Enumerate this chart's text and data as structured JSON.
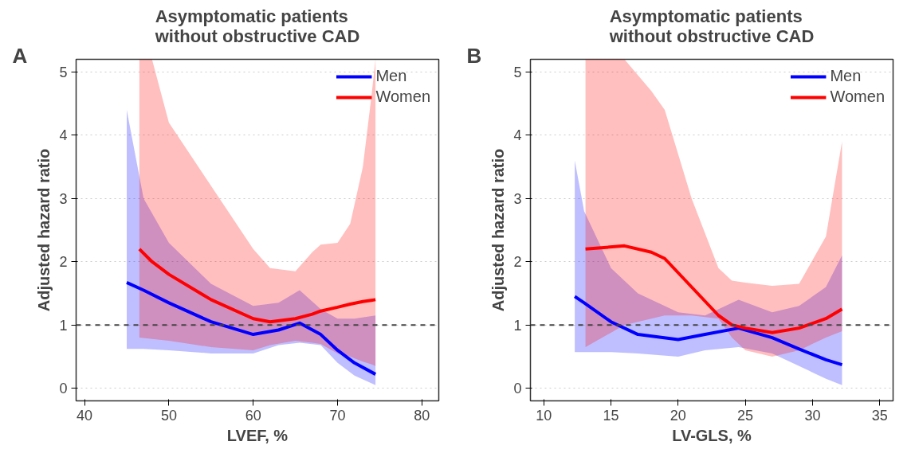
{
  "chart_data": [
    {
      "type": "line",
      "title": "Asymptomatic patients\nwithout obstructive CAD",
      "annotations": [
        "A"
      ],
      "xlabel": "LVEF, %",
      "ylabel": "Adjusted hazard ratio",
      "xlim": [
        39,
        82
      ],
      "ylim": [
        -0.2,
        5.2
      ],
      "xticks": [
        40,
        50,
        60,
        70,
        80
      ],
      "yticks": [
        0,
        1,
        2,
        3,
        4,
        5
      ],
      "grid": "y",
      "legend": "top right",
      "line_style": "solid",
      "ref_lines": [
        {
          "axis": "y",
          "value": 1,
          "line_style": "dashed",
          "color": "#444444"
        }
      ],
      "series": [
        {
          "name": "Men",
          "color": "#0000ff",
          "x": [
            45,
            47,
            50,
            55,
            60,
            63,
            65.5,
            68,
            70,
            72,
            74.5
          ],
          "values": [
            1.67,
            1.55,
            1.35,
            1.05,
            0.85,
            0.92,
            1.03,
            0.85,
            0.6,
            0.4,
            0.22
          ],
          "lower": [
            0.62,
            0.62,
            0.6,
            0.55,
            0.55,
            0.68,
            0.72,
            0.68,
            0.4,
            0.2,
            0.05
          ],
          "upper": [
            4.4,
            3.0,
            2.3,
            1.65,
            1.3,
            1.35,
            1.55,
            1.25,
            1.1,
            1.1,
            1.15
          ]
        },
        {
          "name": "Women",
          "color": "#ff0000",
          "x": [
            46.5,
            48,
            50,
            55,
            60,
            62,
            65,
            67,
            68,
            70,
            71.5,
            73,
            74,
            74.5
          ],
          "values": [
            2.2,
            2.0,
            1.8,
            1.4,
            1.1,
            1.05,
            1.1,
            1.17,
            1.22,
            1.28,
            1.33,
            1.37,
            1.39,
            1.4
          ],
          "lower": [
            0.8,
            0.78,
            0.75,
            0.65,
            0.6,
            0.68,
            0.75,
            0.72,
            0.7,
            0.55,
            0.5,
            0.42,
            0.38,
            0.35
          ],
          "upper": [
            5.2,
            5.2,
            4.2,
            3.2,
            2.2,
            1.9,
            1.85,
            2.15,
            2.27,
            2.3,
            2.6,
            3.5,
            4.6,
            5.2
          ]
        }
      ]
    },
    {
      "type": "line",
      "title": "Asymptomatic patients\nwithout obstructive CAD",
      "annotations": [
        "B"
      ],
      "xlabel": "LV-GLS, %",
      "ylabel": "Adjusted hazard ratio",
      "xlim": [
        9,
        36
      ],
      "ylim": [
        -0.2,
        5.2
      ],
      "xticks": [
        10,
        15,
        20,
        25,
        30,
        35
      ],
      "yticks": [
        0,
        1,
        2,
        3,
        4,
        5
      ],
      "grid": "y",
      "legend": "top right",
      "line_style": "solid",
      "ref_lines": [
        {
          "axis": "y",
          "value": 1,
          "line_style": "dashed",
          "color": "#444444"
        }
      ],
      "series": [
        {
          "name": "Men",
          "color": "#0000ff",
          "x": [
            12.3,
            13,
            15,
            17,
            20,
            22,
            24.5,
            27,
            29,
            31,
            32.2
          ],
          "values": [
            1.45,
            1.35,
            1.05,
            0.85,
            0.77,
            0.85,
            0.95,
            0.8,
            0.62,
            0.45,
            0.37
          ],
          "lower": [
            0.57,
            0.57,
            0.57,
            0.55,
            0.5,
            0.6,
            0.65,
            0.55,
            0.35,
            0.15,
            0.05
          ],
          "upper": [
            3.6,
            2.8,
            1.9,
            1.5,
            1.2,
            1.15,
            1.4,
            1.2,
            1.3,
            1.6,
            2.1
          ]
        },
        {
          "name": "Women",
          "color": "#ff0000",
          "x": [
            13.1,
            16,
            18,
            19,
            21,
            23,
            24,
            25,
            27,
            29,
            31,
            32.2
          ],
          "values": [
            2.2,
            2.25,
            2.15,
            2.05,
            1.6,
            1.15,
            1.0,
            0.95,
            0.88,
            0.95,
            1.1,
            1.25
          ],
          "lower": [
            0.65,
            1.0,
            1.1,
            1.15,
            1.15,
            1.1,
            0.8,
            0.6,
            0.5,
            0.6,
            0.8,
            0.9
          ],
          "upper": [
            5.2,
            5.2,
            4.7,
            4.4,
            3.0,
            1.9,
            1.7,
            1.67,
            1.62,
            1.65,
            2.4,
            3.9
          ]
        }
      ]
    }
  ]
}
